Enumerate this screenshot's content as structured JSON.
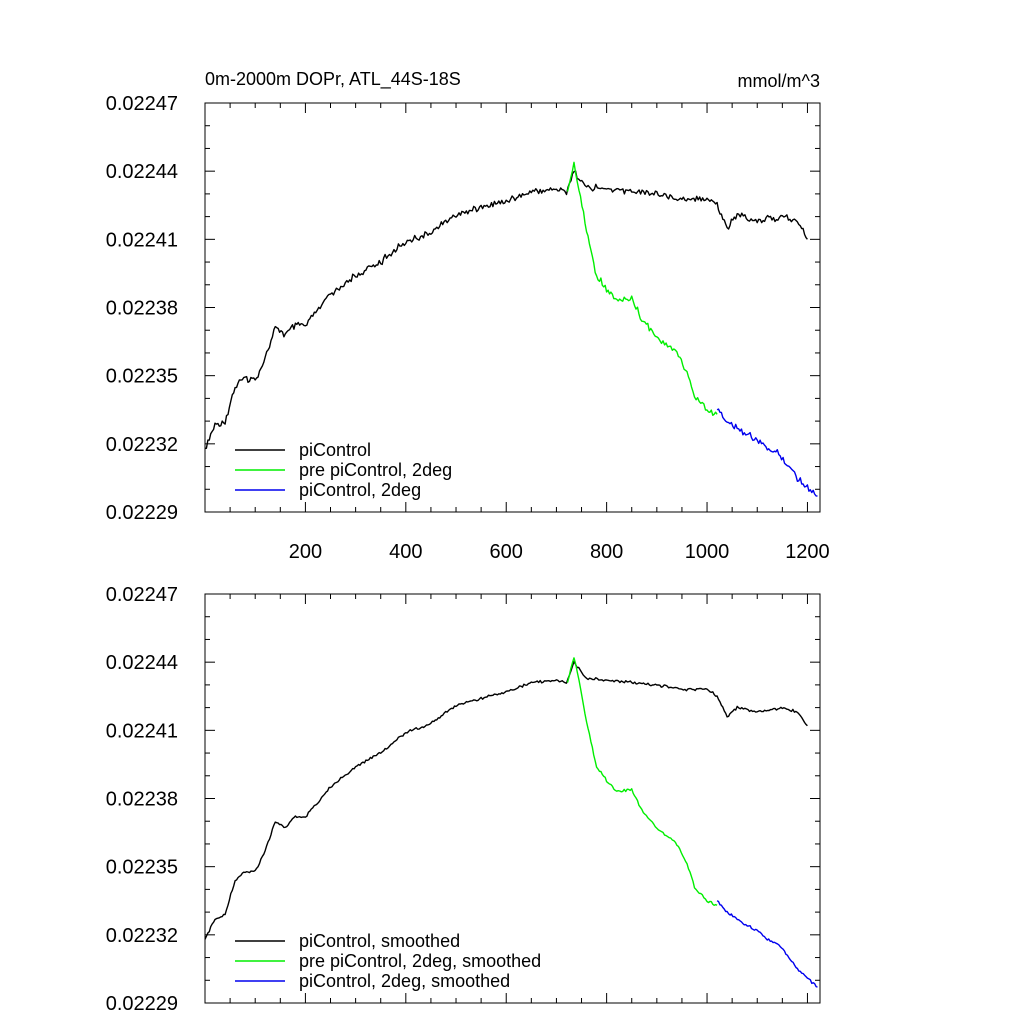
{
  "chart_data": [
    {
      "type": "line",
      "title": "0m-2000m DOPr, ATL_44S-18S",
      "units": "mmol/m^3",
      "xlabel": "",
      "ylabel": "",
      "xlim": [
        0,
        1225
      ],
      "ylim": [
        0.02229,
        0.02247
      ],
      "x_ticks": [
        200,
        400,
        600,
        800,
        1000,
        1200
      ],
      "x_tick_labels": [
        "200",
        "400",
        "600",
        "800",
        "1000",
        "1200"
      ],
      "y_ticks": [
        0.02229,
        0.02232,
        0.02235,
        0.02238,
        0.02241,
        0.02244,
        0.02247
      ],
      "y_tick_labels": [
        "0.02229",
        "0.02232",
        "0.02235",
        "0.02238",
        "0.02241",
        "0.02244",
        "0.02247"
      ],
      "legend_position": "bottom-left",
      "grid": false,
      "series": [
        {
          "name": "piControl",
          "color": "#000000",
          "x": [
            0,
            20,
            40,
            60,
            80,
            100,
            120,
            140,
            160,
            180,
            200,
            250,
            300,
            350,
            400,
            450,
            500,
            550,
            600,
            650,
            700,
            720,
            735,
            760,
            800,
            850,
            900,
            950,
            1000,
            1020,
            1040,
            1060,
            1100,
            1150,
            1180,
            1200
          ],
          "y": [
            0.022318,
            0.022328,
            0.02233,
            0.022345,
            0.022349,
            0.022348,
            0.022358,
            0.022371,
            0.022368,
            0.022372,
            0.022372,
            0.022386,
            0.022394,
            0.0224,
            0.022409,
            0.022413,
            0.022421,
            0.022424,
            0.022427,
            0.022431,
            0.022432,
            0.022431,
            0.02244,
            0.022433,
            0.022432,
            0.022431,
            0.02243,
            0.022428,
            0.022428,
            0.022425,
            0.022415,
            0.022421,
            0.022418,
            0.02242,
            0.022418,
            0.02241
          ]
        },
        {
          "name": "pre piControl, 2deg",
          "color": "#00ee00",
          "x": [
            722,
            735,
            745,
            760,
            780,
            800,
            820,
            850,
            870,
            900,
            940,
            960,
            975,
            1000,
            1020
          ],
          "y": [
            0.022431,
            0.022443,
            0.022432,
            0.022414,
            0.022394,
            0.022388,
            0.022383,
            0.022384,
            0.022375,
            0.022367,
            0.02236,
            0.022351,
            0.022341,
            0.022335,
            0.022333
          ]
        },
        {
          "name": "piControl, 2deg",
          "color": "#0000ee",
          "x": [
            1020,
            1040,
            1060,
            1080,
            1100,
            1120,
            1140,
            1160,
            1180,
            1200,
            1220
          ],
          "y": [
            0.022335,
            0.02233,
            0.022327,
            0.022324,
            0.022322,
            0.022318,
            0.022316,
            0.022311,
            0.022305,
            0.022301,
            0.022297
          ]
        }
      ]
    },
    {
      "type": "line",
      "title": "",
      "xlabel": "",
      "ylabel": "",
      "xlim": [
        0,
        1225
      ],
      "ylim": [
        0.02229,
        0.02247
      ],
      "x_ticks": [
        200,
        400,
        600,
        800,
        1000,
        1200
      ],
      "x_tick_labels": [],
      "y_ticks": [
        0.02229,
        0.02232,
        0.02235,
        0.02238,
        0.02241,
        0.02244,
        0.02247
      ],
      "y_tick_labels": [
        "0.02229",
        "0.02232",
        "0.02235",
        "0.02238",
        "0.02241",
        "0.02244",
        "0.02247"
      ],
      "legend_position": "bottom-left",
      "grid": false,
      "series": [
        {
          "name": "piControl, smoothed",
          "color": "#000000",
          "x": [
            0,
            20,
            40,
            60,
            80,
            100,
            120,
            140,
            160,
            180,
            200,
            250,
            300,
            350,
            400,
            450,
            500,
            550,
            600,
            650,
            700,
            720,
            735,
            760,
            800,
            850,
            900,
            950,
            1000,
            1020,
            1040,
            1060,
            1100,
            1150,
            1180,
            1200
          ],
          "y": [
            0.022318,
            0.022327,
            0.022329,
            0.022344,
            0.022348,
            0.022348,
            0.022357,
            0.02237,
            0.022367,
            0.022372,
            0.022372,
            0.022385,
            0.022394,
            0.0224,
            0.022409,
            0.022413,
            0.022421,
            0.022424,
            0.022427,
            0.022431,
            0.022432,
            0.022431,
            0.02244,
            0.022433,
            0.022432,
            0.022431,
            0.02243,
            0.022428,
            0.022428,
            0.022425,
            0.022416,
            0.02242,
            0.022418,
            0.02242,
            0.022418,
            0.022412
          ]
        },
        {
          "name": "pre piControl, 2deg, smoothed",
          "color": "#00ee00",
          "x": [
            722,
            735,
            745,
            760,
            780,
            800,
            820,
            850,
            870,
            900,
            940,
            960,
            975,
            1000,
            1020
          ],
          "y": [
            0.022431,
            0.022442,
            0.022432,
            0.022414,
            0.022394,
            0.022388,
            0.022383,
            0.022384,
            0.022375,
            0.022367,
            0.02236,
            0.022351,
            0.022341,
            0.022335,
            0.022333
          ]
        },
        {
          "name": "piControl, 2deg, smoothed",
          "color": "#0000ee",
          "x": [
            1020,
            1040,
            1060,
            1080,
            1100,
            1120,
            1140,
            1160,
            1180,
            1200,
            1220
          ],
          "y": [
            0.022335,
            0.02233,
            0.022327,
            0.022324,
            0.022322,
            0.022318,
            0.022316,
            0.022311,
            0.022305,
            0.022301,
            0.022297
          ]
        }
      ]
    }
  ]
}
